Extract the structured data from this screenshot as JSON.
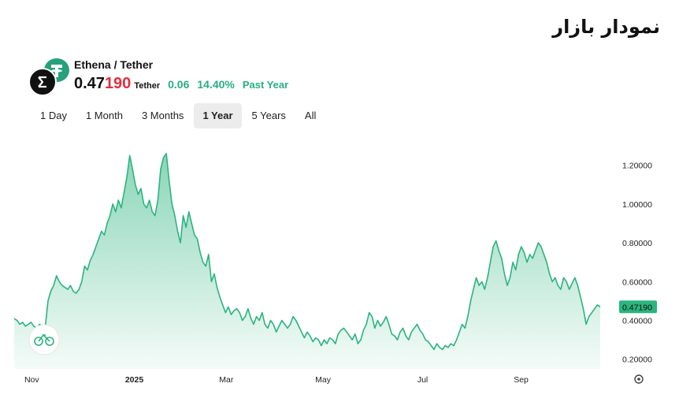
{
  "page_title": "نمودار بازار",
  "pair": {
    "name": "Ethena / Tether",
    "price_main": "0.47",
    "price_tail": "190",
    "price_unit": "Tether",
    "change": "0.06",
    "change_pct": "14.40%",
    "period": "Past Year"
  },
  "icons": {
    "base": "ethena-logo-icon",
    "quote": "tether-logo-icon",
    "watermark": "chart-watermark-icon",
    "settings": "settings-gear-icon"
  },
  "colors": {
    "accent": "#27b07e",
    "price_tail": "#e0303e",
    "line": "#2bb47e",
    "last_label_bg": "#2bb47e"
  },
  "tabs": [
    {
      "label": "1 Day",
      "active": false
    },
    {
      "label": "1 Month",
      "active": false
    },
    {
      "label": "3 Months",
      "active": false
    },
    {
      "label": "1 Year",
      "active": true
    },
    {
      "label": "5 Years",
      "active": false
    },
    {
      "label": "All",
      "active": false
    }
  ],
  "chart_data": {
    "type": "area",
    "series": [
      {
        "name": "",
        "values": [
          0.41,
          0.4,
          0.38,
          0.39,
          0.37,
          0.38,
          0.39,
          0.37,
          0.36,
          0.38,
          0.37,
          0.36,
          0.5,
          0.55,
          0.58,
          0.63,
          0.6,
          0.58,
          0.57,
          0.56,
          0.58,
          0.55,
          0.54,
          0.56,
          0.6,
          0.68,
          0.66,
          0.71,
          0.74,
          0.78,
          0.82,
          0.86,
          0.84,
          0.9,
          0.94,
          1.0,
          0.96,
          1.02,
          0.98,
          1.06,
          1.14,
          1.25,
          1.18,
          1.1,
          1.05,
          1.08,
          1.0,
          0.98,
          1.02,
          0.96,
          0.94,
          1.02,
          1.18,
          1.24,
          1.26,
          1.12,
          1.0,
          0.94,
          0.86,
          0.8,
          0.94,
          0.88,
          0.96,
          0.9,
          0.84,
          0.82,
          0.75,
          0.7,
          0.68,
          0.74,
          0.6,
          0.64,
          0.57,
          0.52,
          0.48,
          0.44,
          0.47,
          0.43,
          0.45,
          0.46,
          0.44,
          0.4,
          0.42,
          0.46,
          0.41,
          0.38,
          0.42,
          0.4,
          0.44,
          0.38,
          0.36,
          0.4,
          0.38,
          0.34,
          0.37,
          0.4,
          0.38,
          0.36,
          0.38,
          0.42,
          0.4,
          0.37,
          0.34,
          0.31,
          0.34,
          0.32,
          0.29,
          0.31,
          0.3,
          0.27,
          0.3,
          0.28,
          0.31,
          0.3,
          0.28,
          0.33,
          0.35,
          0.36,
          0.34,
          0.32,
          0.3,
          0.33,
          0.28,
          0.3,
          0.35,
          0.38,
          0.44,
          0.42,
          0.36,
          0.4,
          0.37,
          0.39,
          0.42,
          0.38,
          0.33,
          0.32,
          0.3,
          0.34,
          0.36,
          0.32,
          0.3,
          0.34,
          0.36,
          0.38,
          0.35,
          0.33,
          0.3,
          0.29,
          0.27,
          0.25,
          0.28,
          0.26,
          0.25,
          0.27,
          0.26,
          0.28,
          0.27,
          0.3,
          0.34,
          0.38,
          0.36,
          0.42,
          0.5,
          0.56,
          0.62,
          0.58,
          0.6,
          0.56,
          0.62,
          0.7,
          0.78,
          0.81,
          0.76,
          0.72,
          0.64,
          0.58,
          0.62,
          0.7,
          0.66,
          0.74,
          0.78,
          0.75,
          0.7,
          0.74,
          0.72,
          0.76,
          0.8,
          0.78,
          0.74,
          0.7,
          0.64,
          0.6,
          0.62,
          0.58,
          0.56,
          0.62,
          0.6,
          0.56,
          0.59,
          0.62,
          0.58,
          0.52,
          0.46,
          0.38,
          0.42,
          0.44,
          0.46,
          0.48,
          0.47
        ]
      }
    ],
    "x_ticks": [
      {
        "label": "Nov",
        "bold": false,
        "frac": 0.03
      },
      {
        "label": "2025",
        "bold": true,
        "frac": 0.205
      },
      {
        "label": "Mar",
        "bold": false,
        "frac": 0.362
      },
      {
        "label": "May",
        "bold": false,
        "frac": 0.527
      },
      {
        "label": "Jul",
        "bold": false,
        "frac": 0.697
      },
      {
        "label": "Sep",
        "bold": false,
        "frac": 0.865
      }
    ],
    "y_ticks": [
      "1.20000",
      "1.00000",
      "0.80000",
      "0.60000",
      "0.40000",
      "0.20000"
    ],
    "y_tick_values": [
      1.2,
      1.0,
      0.8,
      0.6,
      0.4,
      0.2
    ],
    "ylim": [
      0.15,
      1.3
    ],
    "last_value_label": "0.47190"
  }
}
